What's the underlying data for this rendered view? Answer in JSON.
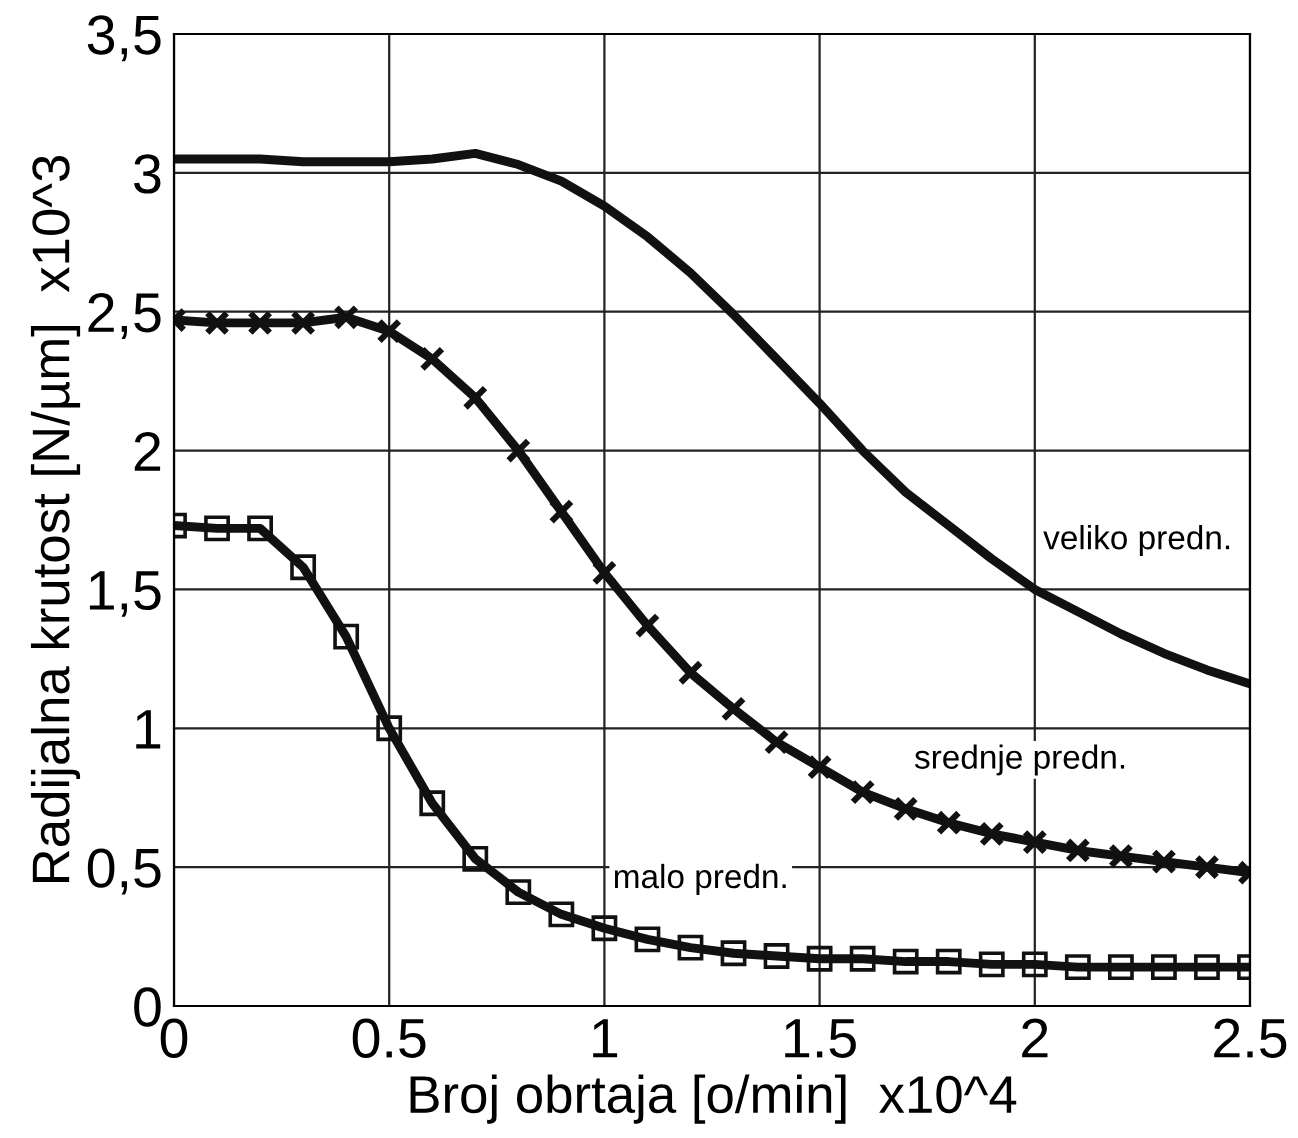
{
  "chart_data": {
    "type": "line",
    "xlabel": "Broj obrtaja [o/min]  x10^4",
    "ylabel": "Radijalna krutost [N/µm]  x10^3",
    "xlim": [
      0,
      2.5
    ],
    "xticks": [
      0,
      0.5,
      1,
      1.5,
      2,
      2.5
    ],
    "ylim": [
      0,
      3.5
    ],
    "yticks": [
      0,
      {
        "value": 0.5,
        "label": "0,5"
      },
      1,
      {
        "value": 1.5,
        "label": "1,5"
      },
      2,
      {
        "value": 2.5,
        "label": "2,5"
      },
      3,
      {
        "value": 3.5,
        "label": "3,5"
      }
    ],
    "grid": true,
    "series": [
      {
        "color": "#111111",
        "marker": "none",
        "x": [
          0,
          0.2,
          0.3,
          0.5,
          0.6,
          0.7,
          0.8,
          0.9,
          1.0,
          1.1,
          1.2,
          1.3,
          1.4,
          1.5,
          1.6,
          1.7,
          1.8,
          1.9,
          2.0,
          2.1,
          2.2,
          2.3,
          2.4,
          2.5
        ],
        "values": [
          3.05,
          3.05,
          3.04,
          3.04,
          3.05,
          3.07,
          3.03,
          2.97,
          2.88,
          2.77,
          2.64,
          2.49,
          2.33,
          2.17,
          2.0,
          1.85,
          1.73,
          1.61,
          1.5,
          1.42,
          1.34,
          1.27,
          1.21,
          1.16
        ]
      },
      {
        "color": "#111111",
        "marker": "cross",
        "x": [
          0,
          0.1,
          0.2,
          0.3,
          0.4,
          0.5,
          0.6,
          0.7,
          0.8,
          0.9,
          1.0,
          1.1,
          1.2,
          1.3,
          1.4,
          1.5,
          1.6,
          1.7,
          1.8,
          1.9,
          2.0,
          2.1,
          2.2,
          2.3,
          2.4,
          2.5
        ],
        "values": [
          2.47,
          2.46,
          2.46,
          2.46,
          2.48,
          2.43,
          2.33,
          2.19,
          2.0,
          1.78,
          1.56,
          1.37,
          1.2,
          1.07,
          0.95,
          0.86,
          0.77,
          0.71,
          0.66,
          0.62,
          0.59,
          0.56,
          0.54,
          0.52,
          0.5,
          0.48
        ]
      },
      {
        "color": "#111111",
        "marker": "square",
        "x": [
          0,
          0.1,
          0.2,
          0.3,
          0.4,
          0.5,
          0.6,
          0.7,
          0.8,
          0.9,
          1.0,
          1.1,
          1.2,
          1.3,
          1.4,
          1.5,
          1.6,
          1.7,
          1.8,
          1.9,
          2.0,
          2.1,
          2.2,
          2.3,
          2.4,
          2.5
        ],
        "values": [
          1.73,
          1.72,
          1.72,
          1.58,
          1.33,
          1.0,
          0.73,
          0.53,
          0.41,
          0.33,
          0.28,
          0.24,
          0.21,
          0.19,
          0.18,
          0.17,
          0.17,
          0.16,
          0.16,
          0.15,
          0.15,
          0.14,
          0.14,
          0.14,
          0.14,
          0.14
        ]
      }
    ],
    "annotations": [
      {
        "text": "veliko predn.",
        "x": 2.0,
        "y": 1.5
      },
      {
        "text": "srednje predn.",
        "x": 1.7,
        "y": 0.71
      },
      {
        "text": "malo predn.",
        "x": 1.0,
        "y": 0.28
      }
    ]
  }
}
